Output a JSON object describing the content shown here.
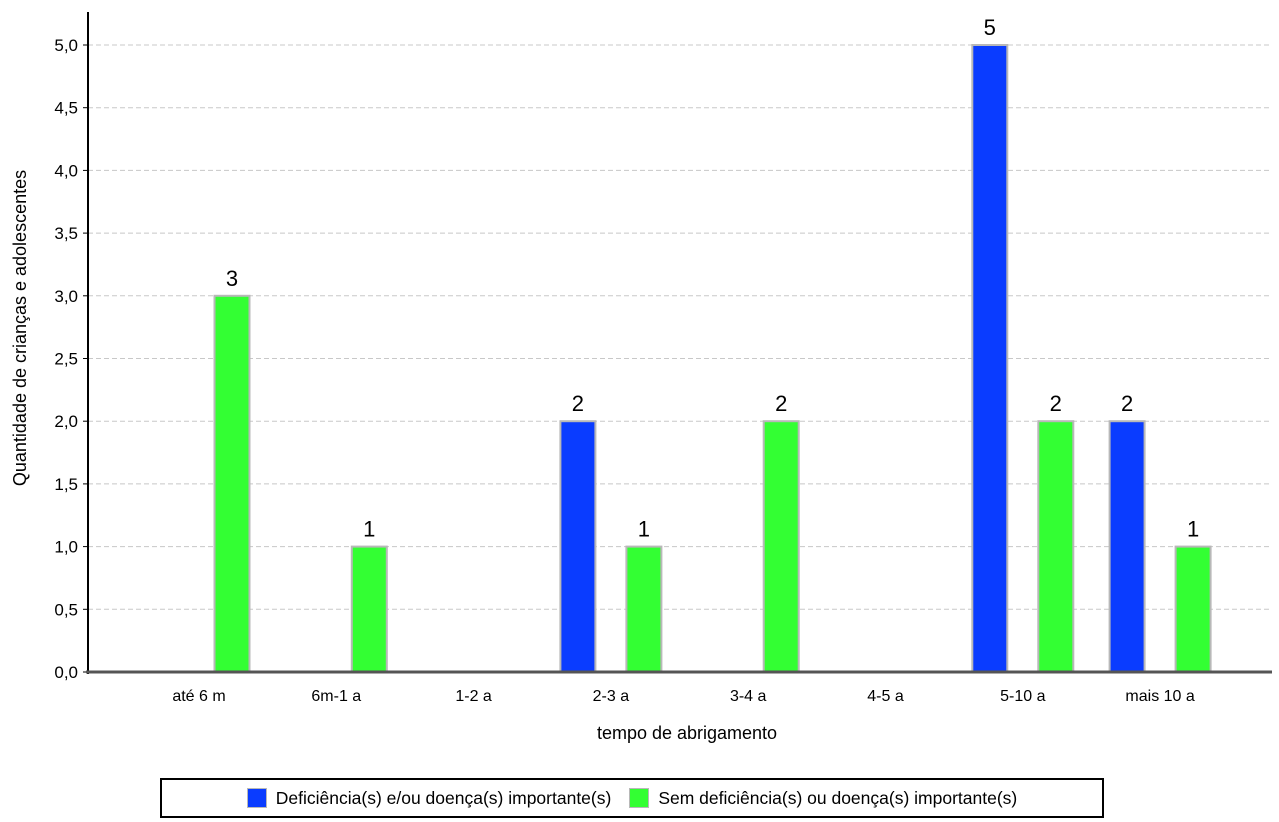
{
  "chart_data": {
    "type": "bar",
    "categories": [
      "até 6 m",
      "6m-1 a",
      "1-2 a",
      "2-3 a",
      "3-4 a",
      "4-5 a",
      "5-10 a",
      "mais 10 a"
    ],
    "series": [
      {
        "name": "Deficiência(s) e/ou doença(s) importante(s)",
        "color": "#0a3cff",
        "values": [
          0,
          0,
          0,
          2,
          0,
          0,
          5,
          2
        ]
      },
      {
        "name": "Sem deficiência(s) ou doença(s) importante(s)",
        "color": "#33ff33",
        "values": [
          3,
          1,
          0,
          1,
          2,
          0,
          2,
          1
        ]
      }
    ],
    "xlabel": "tempo de abrigamento",
    "ylabel": "Quantidade de crianças e adolescentes",
    "ylim": [
      0,
      5
    ],
    "yticks": [
      "0,0",
      "0,5",
      "1,0",
      "1,5",
      "2,0",
      "2,5",
      "3,0",
      "3,5",
      "4,0",
      "4,5",
      "5,0"
    ],
    "grid": true,
    "legend_position": "bottom"
  }
}
